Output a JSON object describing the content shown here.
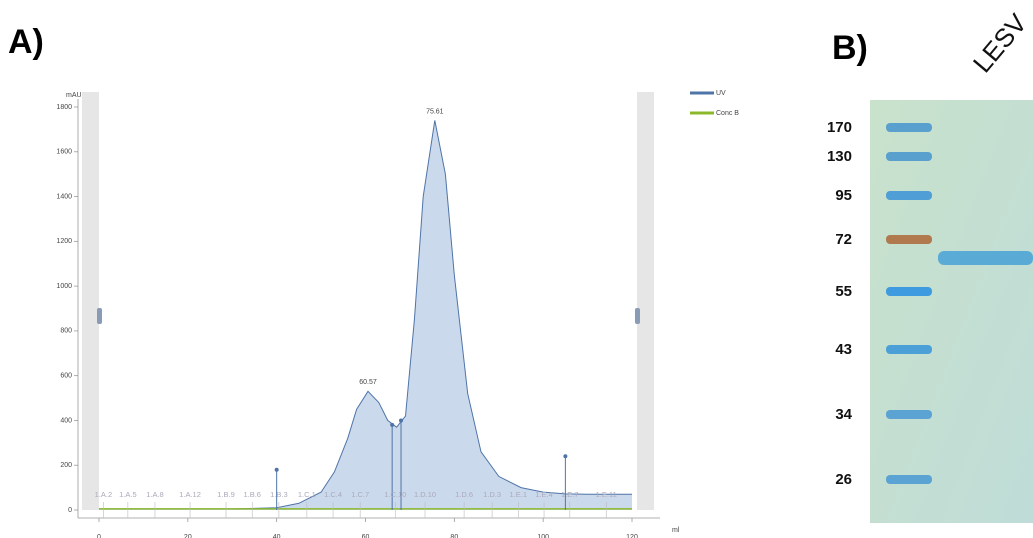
{
  "panels": {
    "a": "A)",
    "b": "B)"
  },
  "chart_data": {
    "type": "line",
    "ylabel": "mAU",
    "xlabel": "ml",
    "xlim": [
      0,
      120
    ],
    "xticks": [
      0,
      20,
      40,
      60,
      80,
      100,
      120
    ],
    "ylim": [
      0,
      1800
    ],
    "yticks": [
      0,
      200,
      400,
      600,
      800,
      1000,
      1200,
      1400,
      1600,
      1800
    ],
    "legend": "top-right",
    "x": [
      0,
      10,
      20,
      30,
      40,
      45,
      50,
      53,
      56,
      58,
      60.57,
      63,
      65,
      67,
      69,
      71,
      73,
      75.61,
      78,
      80,
      83,
      86,
      90,
      95,
      100,
      105,
      110,
      120
    ],
    "series": [
      {
        "name": "UV",
        "color": "#4f74a8",
        "fill": "#cbd9ec",
        "values": [
          5,
          5,
          5,
          5,
          10,
          30,
          80,
          170,
          320,
          450,
          530,
          480,
          400,
          370,
          420,
          850,
          1400,
          1740,
          1500,
          1050,
          520,
          260,
          150,
          100,
          80,
          72,
          70,
          70
        ]
      },
      {
        "name": "Conc B",
        "color": "#8ab82a",
        "values": [
          5,
          5,
          5,
          5,
          5,
          5,
          5,
          5,
          5,
          5,
          5,
          5,
          5,
          5,
          5,
          5,
          5,
          5,
          5,
          5,
          5,
          5,
          5,
          5,
          5,
          5,
          5,
          5
        ]
      }
    ],
    "peak_labels": [
      {
        "x": 60.57,
        "y": 530,
        "label": "60.57"
      },
      {
        "x": 75.61,
        "y": 1740,
        "label": "75.61"
      }
    ],
    "fractions": [
      {
        "x": 1,
        "label": "1.A.2"
      },
      {
        "x": 6.5,
        "label": "1.A.5"
      },
      {
        "x": 12.6,
        "label": "1.A.8"
      },
      {
        "x": 20.5,
        "label": "1.A.12"
      },
      {
        "x": 28.6,
        "label": "1.B.9"
      },
      {
        "x": 34.5,
        "label": "1.B.6"
      },
      {
        "x": 40.5,
        "label": "1.B.3"
      },
      {
        "x": 46.8,
        "label": "1.C.1"
      },
      {
        "x": 52.7,
        "label": "1.C.4"
      },
      {
        "x": 58.8,
        "label": "1.C.7"
      },
      {
        "x": 66.7,
        "label": "1.C.10"
      },
      {
        "x": 73.4,
        "label": "1.D.10"
      },
      {
        "x": 82.2,
        "label": "1.D.6"
      },
      {
        "x": 88.5,
        "label": "1.D.3"
      },
      {
        "x": 94.4,
        "label": "1.E.1"
      },
      {
        "x": 100.2,
        "label": "1.E.4"
      },
      {
        "x": 106,
        "label": "1.E.7"
      },
      {
        "x": 114.2,
        "label": "1.E.11"
      }
    ]
  },
  "gel": {
    "lane_label": "LESV",
    "markers": [
      170,
      130,
      95,
      72,
      55,
      43,
      34,
      26
    ]
  }
}
